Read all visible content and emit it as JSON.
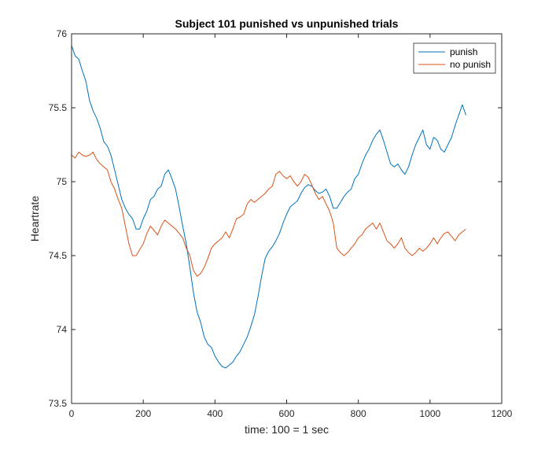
{
  "chart_data": {
    "type": "line",
    "title": "Subject 101 punished vs unpunished trials",
    "xlabel": "time: 100 = 1 sec",
    "ylabel": "Heartrate",
    "xlim": [
      0,
      1200
    ],
    "ylim": [
      73.5,
      76
    ],
    "xticks": [
      0,
      200,
      400,
      600,
      800,
      1000,
      1200
    ],
    "yticks": [
      73.5,
      74,
      74.5,
      75,
      75.5,
      76
    ],
    "xtick_labels": [
      "0",
      "200",
      "400",
      "600",
      "800",
      "1000",
      "1200"
    ],
    "ytick_labels": [
      "73.5",
      "74",
      "74.5",
      "75",
      "75.5",
      "76"
    ],
    "grid": false,
    "legend_position": "top-right",
    "series": [
      {
        "name": "punish",
        "color": "#0072BD",
        "x": [
          0,
          10,
          20,
          30,
          40,
          50,
          60,
          70,
          80,
          90,
          100,
          110,
          120,
          130,
          140,
          150,
          160,
          170,
          180,
          190,
          200,
          210,
          220,
          230,
          240,
          250,
          260,
          270,
          280,
          290,
          300,
          310,
          320,
          330,
          340,
          350,
          360,
          370,
          380,
          390,
          400,
          410,
          420,
          430,
          440,
          450,
          460,
          470,
          480,
          490,
          500,
          510,
          520,
          530,
          540,
          550,
          560,
          570,
          580,
          590,
          600,
          610,
          620,
          630,
          640,
          650,
          660,
          670,
          680,
          690,
          700,
          710,
          720,
          730,
          740,
          750,
          760,
          770,
          780,
          790,
          800,
          810,
          820,
          830,
          840,
          850,
          860,
          870,
          880,
          890,
          900,
          910,
          920,
          930,
          940,
          950,
          960,
          970,
          980,
          990,
          1000,
          1010,
          1020,
          1030,
          1040,
          1050,
          1060,
          1070,
          1080,
          1090,
          1100
        ],
        "y": [
          75.92,
          75.85,
          75.83,
          75.75,
          75.68,
          75.55,
          75.48,
          75.43,
          75.36,
          75.27,
          75.24,
          75.18,
          75.08,
          74.98,
          74.88,
          74.82,
          74.78,
          74.75,
          74.68,
          74.68,
          74.75,
          74.8,
          74.88,
          74.9,
          74.95,
          74.97,
          75.05,
          75.08,
          75.02,
          74.95,
          74.83,
          74.7,
          74.58,
          74.42,
          74.25,
          74.12,
          74.05,
          73.95,
          73.9,
          73.88,
          73.82,
          73.78,
          73.75,
          73.74,
          73.76,
          73.78,
          73.82,
          73.85,
          73.9,
          73.95,
          74.02,
          74.1,
          74.22,
          74.36,
          74.48,
          74.53,
          74.56,
          74.6,
          74.65,
          74.72,
          74.78,
          74.83,
          74.85,
          74.87,
          74.92,
          74.96,
          74.98,
          74.97,
          74.94,
          74.92,
          74.93,
          74.95,
          74.9,
          74.82,
          74.82,
          74.86,
          74.9,
          74.93,
          74.95,
          75.02,
          75.05,
          75.12,
          75.18,
          75.22,
          75.28,
          75.32,
          75.35,
          75.28,
          75.2,
          75.12,
          75.1,
          75.12,
          75.08,
          75.05,
          75.1,
          75.18,
          75.25,
          75.3,
          75.35,
          75.25,
          75.22,
          75.3,
          75.28,
          75.22,
          75.2,
          75.25,
          75.3,
          75.38,
          75.45,
          75.52,
          75.45
        ]
      },
      {
        "name": "no punish",
        "color": "#D95319",
        "x": [
          0,
          10,
          20,
          30,
          40,
          50,
          60,
          70,
          80,
          90,
          100,
          110,
          120,
          130,
          140,
          150,
          160,
          170,
          180,
          190,
          200,
          210,
          220,
          230,
          240,
          250,
          260,
          270,
          280,
          290,
          300,
          310,
          320,
          330,
          340,
          350,
          360,
          370,
          380,
          390,
          400,
          410,
          420,
          430,
          440,
          450,
          460,
          470,
          480,
          490,
          500,
          510,
          520,
          530,
          540,
          550,
          560,
          570,
          580,
          590,
          600,
          610,
          620,
          630,
          640,
          650,
          660,
          670,
          680,
          690,
          700,
          710,
          720,
          730,
          740,
          750,
          760,
          770,
          780,
          790,
          800,
          810,
          820,
          830,
          840,
          850,
          860,
          870,
          880,
          890,
          900,
          910,
          920,
          930,
          940,
          950,
          960,
          970,
          980,
          990,
          1000,
          1010,
          1020,
          1030,
          1040,
          1050,
          1060,
          1070,
          1080,
          1090,
          1100
        ],
        "y": [
          75.18,
          75.16,
          75.2,
          75.18,
          75.17,
          75.18,
          75.2,
          75.15,
          75.12,
          75.1,
          75.08,
          75.0,
          74.95,
          74.88,
          74.82,
          74.7,
          74.58,
          74.5,
          74.5,
          74.54,
          74.58,
          74.65,
          74.7,
          74.67,
          74.64,
          74.7,
          74.74,
          74.72,
          74.7,
          74.68,
          74.65,
          74.62,
          74.55,
          74.5,
          74.4,
          74.36,
          74.38,
          74.42,
          74.48,
          74.55,
          74.58,
          74.6,
          74.62,
          74.66,
          74.62,
          74.68,
          74.75,
          74.76,
          74.78,
          74.85,
          74.88,
          74.86,
          74.88,
          74.9,
          74.92,
          74.95,
          74.97,
          75.05,
          75.07,
          75.04,
          75.02,
          75.04,
          75.0,
          74.97,
          75.0,
          75.05,
          75.03,
          74.98,
          74.92,
          74.88,
          74.9,
          74.85,
          74.8,
          74.72,
          74.55,
          74.52,
          74.5,
          74.52,
          74.55,
          74.58,
          74.62,
          74.64,
          74.68,
          74.7,
          74.72,
          74.68,
          74.72,
          74.66,
          74.6,
          74.58,
          74.55,
          74.58,
          74.62,
          74.55,
          74.52,
          74.5,
          74.52,
          74.55,
          74.53,
          74.55,
          74.58,
          74.62,
          74.58,
          74.62,
          74.65,
          74.66,
          74.63,
          74.6,
          74.64,
          74.66,
          74.68
        ]
      }
    ]
  }
}
